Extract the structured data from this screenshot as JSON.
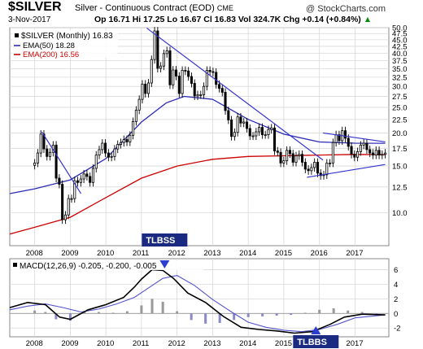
{
  "header": {
    "symbol": "$SILVER",
    "title": "Silver - Continuous Contract (EOD)",
    "exchange": "CME",
    "source": "@ StockCharts.com",
    "date": "3-Nov-2017",
    "quote": "Op 16.71  Hi 17.25  Lo 16.67  Cl 16.83  Vol 324.7K  Chg +0.14 (+0.84%)",
    "quote_arrow": "▲"
  },
  "legend": {
    "main": "$SILVER (Monthly) 16.83",
    "ema50": "EMA(50) 18.28",
    "ema200": "EMA(200) 16.56"
  },
  "macd": {
    "label": "MACD(12,26,9) -0.205, -0.200, -0.005"
  },
  "annotations": {
    "top": "TLBSS",
    "bottom": "TLBBS"
  },
  "colors": {
    "price": "#000000",
    "ema50": "#2b2bb5",
    "ema200": "#cc0000",
    "trendline": "#3333cc",
    "macd_line": "#000000",
    "signal_line": "#5555cc",
    "hist_pos": "#999999",
    "hist_neg": "#8a8ac8",
    "annotation_bg": "#1a2a80"
  },
  "chart_data": [
    {
      "type": "candlestick",
      "y_scale": "log",
      "ylim": [
        7.5,
        50
      ],
      "y_ticks": [
        10.0,
        12.5,
        15.0,
        17.5,
        20.0,
        22.5,
        25.0,
        27.5,
        30.0,
        32.5,
        35.0,
        37.5,
        40.0,
        42.5,
        45.0,
        47.5,
        50.0
      ],
      "x_ticks": [
        "2008",
        "2009",
        "2010",
        "2011",
        "2012",
        "2013",
        "2014",
        "2015",
        "2016",
        "2017"
      ],
      "grid": true,
      "legend": "top-left",
      "series": [
        {
          "name": "$SILVER (Monthly)",
          "close": [
            15.4,
            16.8,
            19.8,
            17.4,
            16.3,
            16.9,
            18.0,
            13.5,
            12.8,
            9.4,
            9.8,
            11.3,
            11.3,
            13.2,
            13.0,
            13.4,
            14.0,
            13.7,
            13.0,
            14.7,
            16.5,
            17.3,
            18.3,
            16.8,
            16.2,
            16.3,
            17.4,
            18.1,
            18.4,
            18.9,
            18.5,
            19.6,
            22.1,
            24.4,
            26.8,
            30.6,
            28.2,
            30.9,
            37.9,
            48.6,
            35.1,
            35.8,
            39.9,
            40.9,
            30.4,
            34.6,
            32.8,
            28.2,
            34.5,
            34.3,
            32.7,
            30.8,
            27.6,
            27.9,
            27.9,
            30.0,
            34.5,
            34.1,
            33.9,
            30.5,
            29.5,
            28.5,
            24.3,
            22.4,
            19.4,
            20.1,
            23.0,
            21.8,
            22.0,
            20.8,
            19.5,
            19.5,
            20.2,
            21.0,
            19.7,
            19.7,
            20.6,
            20.9,
            17.1,
            16.9,
            15.4,
            15.7,
            17.2,
            16.7,
            15.5,
            16.4,
            16.6,
            15.5,
            14.6,
            14.4,
            14.8,
            15.5,
            14.1,
            13.8,
            13.9,
            15.4,
            15.4,
            18.4,
            19.7,
            18.7,
            20.4,
            19.1,
            17.8,
            16.6,
            16.2,
            17.0,
            18.0,
            18.3,
            17.3,
            16.8,
            16.5,
            17.2,
            16.5,
            16.6,
            16.8
          ]
        },
        {
          "name": "EMA(50)",
          "x": [
            2007.3,
            2008,
            2009,
            2010,
            2011,
            2011.7,
            2012.2,
            2013,
            2014,
            2015,
            2016,
            2017,
            2017.85
          ],
          "values": [
            11.8,
            12.3,
            13.3,
            16.0,
            22.0,
            26.0,
            27.5,
            26.8,
            22.5,
            19.8,
            18.5,
            18.3,
            18.28
          ]
        },
        {
          "name": "EMA(200)",
          "x": [
            2007.3,
            2008,
            2009,
            2010,
            2011,
            2012,
            2013,
            2014,
            2015,
            2016,
            2017,
            2017.85
          ],
          "values": [
            8.3,
            8.8,
            9.6,
            11.4,
            13.5,
            15.0,
            15.9,
            16.3,
            16.4,
            16.5,
            16.6,
            16.56
          ]
        }
      ],
      "trendlines": [
        {
          "x": [
            2008.2,
            2009.3
          ],
          "y": [
            20.2,
            11.8
          ]
        },
        {
          "x": [
            2011.15,
            2016.1
          ],
          "y": [
            49.8,
            15.8
          ]
        },
        {
          "x": [
            2015.65,
            2017.85
          ],
          "y": [
            13.6,
            15.2
          ]
        },
        {
          "x": [
            2016.1,
            2017.85
          ],
          "y": [
            20.0,
            18.5
          ]
        }
      ]
    },
    {
      "type": "line",
      "title": "MACD(12,26,9)",
      "ylim": [
        -3.2,
        7.5
      ],
      "y_ticks": [
        -2,
        0,
        2,
        4,
        6
      ],
      "x_ticks": [
        "2008",
        "2009",
        "2010",
        "2011",
        "2012",
        "2013",
        "2014",
        "2015",
        "2016",
        "2017"
      ],
      "series": [
        {
          "name": "MACD",
          "x": [
            2007.3,
            2007.8,
            2008.3,
            2008.7,
            2009.0,
            2009.5,
            2010.0,
            2010.5,
            2010.8,
            2011.0,
            2011.3,
            2011.6,
            2011.9,
            2012.3,
            2012.8,
            2013.3,
            2013.8,
            2014.3,
            2014.8,
            2015.3,
            2015.8,
            2016.3,
            2016.7,
            2017.2,
            2017.85
          ],
          "values": [
            0.8,
            1.5,
            1.2,
            -0.5,
            -0.8,
            0.5,
            1.2,
            2.2,
            3.6,
            4.7,
            6.0,
            5.9,
            4.8,
            2.8,
            1.5,
            -0.4,
            -1.9,
            -2.2,
            -2.4,
            -2.7,
            -2.5,
            -1.5,
            -0.5,
            -0.1,
            -0.2
          ]
        },
        {
          "name": "Signal",
          "x": [
            2007.3,
            2007.8,
            2008.3,
            2008.8,
            2009.3,
            2009.8,
            2010.3,
            2010.8,
            2011.2,
            2011.6,
            2012.0,
            2012.5,
            2013.0,
            2013.5,
            2014.0,
            2014.5,
            2015.0,
            2015.5,
            2016.0,
            2016.5,
            2017.0,
            2017.85
          ],
          "values": [
            0.5,
            1.0,
            1.3,
            0.8,
            0.2,
            0.6,
            1.3,
            2.2,
            3.5,
            4.8,
            5.2,
            3.8,
            1.9,
            0.3,
            -1.2,
            -1.9,
            -2.3,
            -2.5,
            -2.2,
            -1.5,
            -0.6,
            -0.2
          ]
        },
        {
          "name": "Histogram",
          "x": [
            2008.0,
            2008.3,
            2008.6,
            2009.0,
            2009.4,
            2009.8,
            2010.2,
            2010.6,
            2011.0,
            2011.3,
            2011.6,
            2012.0,
            2012.4,
            2012.8,
            2013.2,
            2013.6,
            2014.0,
            2014.4,
            2014.8,
            2015.2,
            2015.6,
            2016.0,
            2016.4,
            2016.8,
            2017.2,
            2017.6
          ],
          "values": [
            0.4,
            0.2,
            -0.8,
            -1.0,
            0.3,
            0.2,
            0.1,
            0.3,
            1.1,
            2.0,
            1.6,
            0.3,
            -0.9,
            -1.4,
            -1.3,
            -0.9,
            -0.5,
            -0.4,
            -0.3,
            -0.2,
            0.1,
            0.5,
            0.7,
            0.4,
            0.2,
            -0.1
          ]
        }
      ]
    }
  ]
}
